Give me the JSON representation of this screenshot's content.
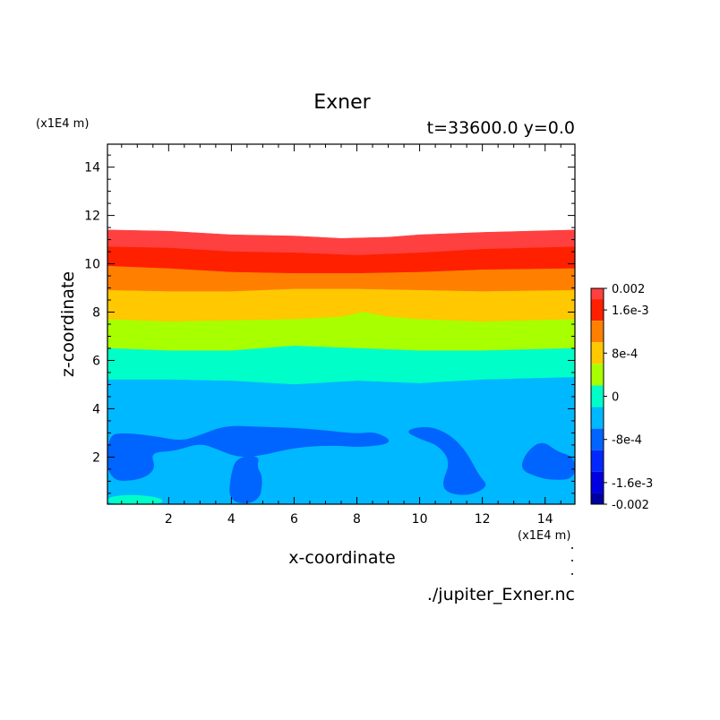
{
  "chart_data": {
    "type": "heatmap",
    "title": "Exner",
    "subtitle": "t=33600.0 y=0.0",
    "xlabel": "x-coordinate",
    "ylabel": "z-coordinate",
    "x_unit": "(x1E4 m)",
    "y_unit": "(x1E4 m)",
    "xlim": [
      0.05,
      14.95
    ],
    "ylim": [
      0.05,
      14.95
    ],
    "x_ticks": [
      2,
      4,
      6,
      8,
      10,
      12,
      14
    ],
    "y_ticks": [
      2,
      4,
      6,
      8,
      10,
      12,
      14
    ],
    "source": "./jupiter_Exner.nc",
    "colorbar": {
      "min": -0.002,
      "max": 0.002,
      "tick_labels": [
        {
          "value": 0.002,
          "label": "0.002"
        },
        {
          "value": 0.0016,
          "label": "1.6e-3"
        },
        {
          "value": 0.0008,
          "label": "8e-4"
        },
        {
          "value": 0,
          "label": "0"
        },
        {
          "value": -0.0008,
          "label": "-8e-4"
        },
        {
          "value": -0.0016,
          "label": "-1.6e-3"
        },
        {
          "value": -0.002,
          "label": "-0.002"
        }
      ],
      "levels": [
        {
          "lo": 0.0018,
          "hi": 0.002,
          "color": "#ff4040"
        },
        {
          "lo": 0.0014,
          "hi": 0.0018,
          "color": "#ff2000"
        },
        {
          "lo": 0.001,
          "hi": 0.0014,
          "color": "#ff8000"
        },
        {
          "lo": 0.0006,
          "hi": 0.001,
          "color": "#ffc800"
        },
        {
          "lo": 0.0002,
          "hi": 0.0006,
          "color": "#a8ff00"
        },
        {
          "lo": -0.0002,
          "hi": 0.0002,
          "color": "#00ffc8"
        },
        {
          "lo": -0.0006,
          "hi": -0.0002,
          "color": "#00b8ff"
        },
        {
          "lo": -0.001,
          "hi": -0.0006,
          "color": "#0064ff"
        },
        {
          "lo": -0.0014,
          "hi": -0.001,
          "color": "#0028ff"
        },
        {
          "lo": -0.0018,
          "hi": -0.0014,
          "color": "#0000e0"
        },
        {
          "lo": -0.002,
          "hi": -0.0018,
          "color": "#0000a0"
        }
      ]
    },
    "contour_bands": [
      {
        "level": 0.0018,
        "color": "#ff4040",
        "top": [
          [
            0.05,
            11.4
          ],
          [
            2,
            11.35
          ],
          [
            4,
            11.2
          ],
          [
            6,
            11.15
          ],
          [
            7.5,
            11.05
          ],
          [
            9,
            11.1
          ],
          [
            10,
            11.2
          ],
          [
            12,
            11.3
          ],
          [
            14.95,
            11.4
          ]
        ]
      },
      {
        "level": 0.0014,
        "color": "#ff2000",
        "top": [
          [
            0.05,
            10.7
          ],
          [
            2,
            10.65
          ],
          [
            4,
            10.5
          ],
          [
            6,
            10.45
          ],
          [
            8,
            10.35
          ],
          [
            10,
            10.45
          ],
          [
            12,
            10.6
          ],
          [
            14.95,
            10.7
          ]
        ]
      },
      {
        "level": 0.001,
        "color": "#ff8000",
        "top": [
          [
            0.05,
            9.9
          ],
          [
            2,
            9.8
          ],
          [
            4,
            9.65
          ],
          [
            6,
            9.6
          ],
          [
            8,
            9.6
          ],
          [
            10,
            9.65
          ],
          [
            12,
            9.75
          ],
          [
            14.95,
            9.8
          ]
        ]
      },
      {
        "level": 0.0006,
        "color": "#ffc800",
        "top": [
          [
            0.05,
            8.9
          ],
          [
            2,
            8.85
          ],
          [
            4,
            8.85
          ],
          [
            6,
            8.95
          ],
          [
            8,
            8.95
          ],
          [
            10,
            8.9
          ],
          [
            12,
            8.85
          ],
          [
            14.95,
            8.9
          ]
        ]
      },
      {
        "level": 0.0002,
        "color": "#a8ff00",
        "top": [
          [
            0.05,
            7.7
          ],
          [
            2,
            7.6
          ],
          [
            4,
            7.65
          ],
          [
            6,
            7.7
          ],
          [
            7.5,
            7.8
          ],
          [
            8.2,
            8.0
          ],
          [
            9,
            7.8
          ],
          [
            10,
            7.7
          ],
          [
            12,
            7.6
          ],
          [
            14.95,
            7.7
          ]
        ]
      },
      {
        "level": -0.0002,
        "color": "#00ffc8",
        "top": [
          [
            0.05,
            6.5
          ],
          [
            2,
            6.4
          ],
          [
            4,
            6.4
          ],
          [
            6,
            6.6
          ],
          [
            8,
            6.5
          ],
          [
            10,
            6.4
          ],
          [
            12,
            6.4
          ],
          [
            14.95,
            6.5
          ]
        ]
      },
      {
        "level": -0.0006,
        "color": "#00b8ff",
        "top": [
          [
            0.05,
            5.2
          ],
          [
            2,
            5.2
          ],
          [
            4,
            5.15
          ],
          [
            6,
            5.0
          ],
          [
            8,
            5.15
          ],
          [
            10,
            5.05
          ],
          [
            12,
            5.2
          ],
          [
            14.95,
            5.3
          ]
        ]
      }
    ],
    "regions": [
      {
        "level": -0.001,
        "color": "#0064ff",
        "outline": [
          [
            0.05,
            2.9
          ],
          [
            0.6,
            3.0
          ],
          [
            1.6,
            2.85
          ],
          [
            2.4,
            2.65
          ],
          [
            3.0,
            2.9
          ],
          [
            3.8,
            3.3
          ],
          [
            4.8,
            3.25
          ],
          [
            6,
            3.2
          ],
          [
            7,
            3.1
          ],
          [
            8,
            2.95
          ],
          [
            8.6,
            3.05
          ],
          [
            9.2,
            2.6
          ],
          [
            8.2,
            2.4
          ],
          [
            7.2,
            2.5
          ],
          [
            6,
            2.4
          ],
          [
            4.9,
            2.05
          ],
          [
            4.2,
            2.0
          ],
          [
            4.0,
            1.4
          ],
          [
            3.9,
            0.1
          ],
          [
            4.9,
            0.1
          ],
          [
            5.0,
            1.2
          ],
          [
            4.8,
            1.6
          ],
          [
            4.9,
            2.05
          ],
          [
            4.2,
            2.0
          ],
          [
            3.6,
            2.3
          ],
          [
            3.0,
            2.6
          ],
          [
            2.2,
            2.25
          ],
          [
            1.4,
            2.2
          ],
          [
            1.6,
            1.5
          ],
          [
            1.1,
            1.05
          ],
          [
            0.05,
            1.0
          ]
        ]
      },
      {
        "level": -0.001,
        "color": "#0064ff",
        "outline": [
          [
            9.5,
            3.1
          ],
          [
            10.3,
            3.3
          ],
          [
            11,
            2.9
          ],
          [
            11.5,
            2.2
          ],
          [
            11.9,
            1.2
          ],
          [
            12.2,
            0.8
          ],
          [
            11.6,
            0.4
          ],
          [
            10.9,
            0.5
          ],
          [
            10.7,
            0.9
          ],
          [
            11.0,
            1.8
          ],
          [
            10.6,
            2.5
          ],
          [
            10.0,
            2.75
          ]
        ]
      },
      {
        "level": -0.001,
        "color": "#0064ff",
        "outline": [
          [
            13.4,
            2.2
          ],
          [
            13.9,
            2.7
          ],
          [
            14.4,
            2.2
          ],
          [
            14.95,
            2.0
          ],
          [
            14.95,
            1.1
          ],
          [
            14.2,
            1.05
          ],
          [
            13.7,
            1.2
          ],
          [
            13.2,
            1.5
          ]
        ]
      },
      {
        "level": -0.0002,
        "color": "#00ffc8",
        "outline": [
          [
            0.05,
            0.35
          ],
          [
            0.9,
            0.45
          ],
          [
            1.8,
            0.3
          ],
          [
            1.8,
            0.05
          ],
          [
            0.05,
            0.05
          ]
        ]
      }
    ]
  }
}
